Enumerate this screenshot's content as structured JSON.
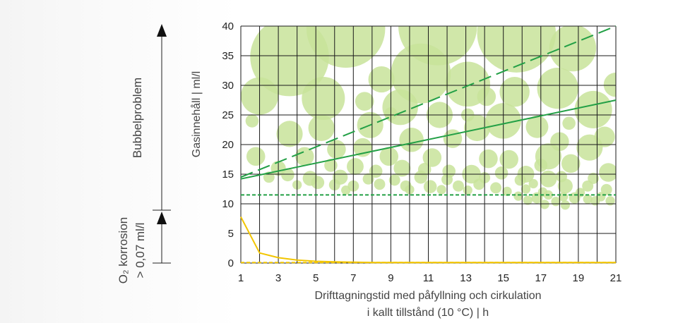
{
  "chart_data": {
    "type": "line",
    "xlabel_line1": "Drifttagningstid med påfyllning och cirkulation",
    "xlabel_line2": "i kallt tillstånd (10 °C) | h",
    "ylabel": "Gasinnehåll | ml/l",
    "xlim": [
      1,
      21
    ],
    "ylim": [
      0,
      40
    ],
    "x_ticks": [
      1,
      3,
      5,
      7,
      9,
      11,
      13,
      15,
      17,
      19,
      21
    ],
    "y_ticks": [
      0,
      5,
      10,
      15,
      20,
      25,
      30,
      35,
      40
    ],
    "grid": true,
    "bubble_problem_label": "Bubbelproblem",
    "o2_label_line1": "O₂ korrosion",
    "o2_label_line2": "> 0,07 ml/l",
    "series": [
      {
        "style": "dashed",
        "color": "#23a046",
        "x": [
          1,
          21
        ],
        "y": [
          14.5,
          40
        ]
      },
      {
        "style": "solid",
        "color": "#23a046",
        "x": [
          1,
          21
        ],
        "y": [
          14.2,
          27.5
        ]
      },
      {
        "style": "dotted",
        "color": "#23a046",
        "x": [
          1,
          21
        ],
        "y": [
          11.5,
          11.5
        ]
      },
      {
        "style": "solid",
        "color": "#f2c500",
        "x": [
          1,
          2,
          3,
          4,
          5,
          6,
          7,
          8,
          9,
          10,
          11,
          12,
          13,
          14,
          15,
          16,
          17,
          18,
          19,
          20,
          21
        ],
        "y": [
          7.8,
          1.7,
          0.9,
          0.5,
          0.3,
          0.2,
          0.15,
          0.1,
          0.1,
          0.1,
          0.1,
          0.1,
          0.1,
          0.1,
          0.1,
          0.1,
          0.1,
          0.1,
          0.1,
          0.1,
          0.1
        ]
      },
      {
        "style": "dotted",
        "color": "#f2c500",
        "x": [
          1,
          21
        ],
        "y": [
          0.1,
          0.1
        ]
      }
    ],
    "bubbles": [
      [
        3.6,
        34.8,
        4.2
      ],
      [
        6.6,
        39.6,
        4.2
      ],
      [
        11.5,
        40.0,
        4.2
      ],
      [
        15.7,
        38.8,
        4.2
      ],
      [
        18.7,
        36.3,
        2.5
      ],
      [
        10.6,
        32.0,
        3.2
      ],
      [
        13.1,
        30.2,
        2.4
      ],
      [
        8.5,
        31.0,
        1.4
      ],
      [
        21.0,
        30.1,
        1.3
      ],
      [
        2.0,
        28.2,
        2.0
      ],
      [
        5.4,
        27.8,
        2.3
      ],
      [
        9.5,
        26.3,
        1.9
      ],
      [
        17.9,
        29.5,
        2.2
      ],
      [
        15.6,
        28.9,
        1.6
      ],
      [
        19.8,
        25.9,
        2.0
      ],
      [
        14.1,
        28.1,
        1.0
      ],
      [
        7.6,
        27.3,
        1.0
      ],
      [
        11.6,
        25.0,
        1.4
      ],
      [
        15.0,
        24.0,
        1.9
      ],
      [
        5.3,
        22.8,
        1.4
      ],
      [
        7.9,
        23.3,
        1.4
      ],
      [
        13.6,
        22.8,
        1.4
      ],
      [
        16.8,
        23.0,
        1.2
      ],
      [
        3.6,
        21.8,
        1.4
      ],
      [
        10.1,
        20.8,
        1.3
      ],
      [
        12.3,
        21.0,
        1.0
      ],
      [
        6.1,
        19.2,
        1.0
      ],
      [
        7.5,
        19.5,
        1.0
      ],
      [
        19.6,
        19.5,
        1.4
      ],
      [
        20.4,
        21.3,
        1.1
      ],
      [
        18.0,
        20.5,
        1.0
      ],
      [
        1.8,
        18.0,
        1.0
      ],
      [
        4.4,
        18.0,
        1.0
      ],
      [
        8.9,
        18.0,
        1.0
      ],
      [
        11.2,
        17.8,
        1.0
      ],
      [
        14.2,
        17.6,
        1.0
      ],
      [
        15.3,
        17.5,
        1.0
      ],
      [
        17.4,
        18.0,
        1.4
      ],
      [
        1.6,
        24.0,
        0.7
      ],
      [
        9.0,
        25.2,
        0.7
      ],
      [
        13.1,
        25.0,
        0.7
      ],
      [
        18.5,
        23.6,
        0.7
      ],
      [
        3.0,
        16.0,
        0.8
      ],
      [
        5.8,
        16.5,
        0.7
      ],
      [
        7.1,
        16.3,
        0.9
      ],
      [
        8.2,
        15.5,
        0.7
      ],
      [
        9.6,
        16.0,
        0.9
      ],
      [
        10.8,
        15.8,
        0.7
      ],
      [
        12.1,
        15.5,
        0.7
      ],
      [
        13.3,
        15.0,
        1.0
      ],
      [
        14.9,
        15.2,
        0.7
      ],
      [
        16.2,
        15.0,
        0.9
      ],
      [
        17.0,
        16.5,
        0.7
      ],
      [
        18.6,
        16.8,
        1.0
      ],
      [
        20.6,
        15.3,
        1.0
      ],
      [
        2.5,
        14.5,
        0.6
      ],
      [
        3.5,
        14.9,
        0.7
      ],
      [
        4.7,
        14.3,
        0.8
      ],
      [
        6.3,
        14.5,
        0.8
      ],
      [
        7.8,
        14.2,
        0.6
      ],
      [
        9.2,
        14.0,
        0.6
      ],
      [
        10.6,
        14.5,
        0.7
      ],
      [
        12.0,
        14.1,
        0.6
      ],
      [
        14.0,
        14.4,
        0.6
      ],
      [
        15.9,
        14.0,
        0.6
      ],
      [
        17.4,
        14.2,
        0.9
      ],
      [
        18.1,
        14.6,
        0.6
      ],
      [
        19.8,
        14.3,
        0.6
      ],
      [
        4.0,
        13.2,
        0.5
      ],
      [
        5.1,
        13.6,
        0.7
      ],
      [
        6.0,
        13.2,
        0.6
      ],
      [
        7.0,
        13.0,
        0.6
      ],
      [
        8.4,
        13.3,
        0.6
      ],
      [
        9.8,
        13.0,
        0.6
      ],
      [
        11.1,
        12.9,
        0.7
      ],
      [
        12.6,
        13.0,
        0.6
      ],
      [
        13.7,
        13.3,
        0.6
      ],
      [
        14.6,
        12.7,
        0.6
      ],
      [
        16.2,
        12.5,
        0.5
      ],
      [
        16.6,
        13.4,
        0.5
      ],
      [
        18.3,
        13.0,
        0.8
      ],
      [
        19.5,
        13.0,
        0.6
      ],
      [
        20.5,
        12.4,
        0.6
      ],
      [
        6.6,
        12.3,
        0.5
      ],
      [
        10.0,
        12.4,
        0.5
      ],
      [
        11.7,
        12.4,
        0.5
      ],
      [
        13.1,
        12.3,
        0.5
      ],
      [
        15.2,
        12.1,
        0.5
      ],
      [
        17.1,
        12.0,
        0.5
      ],
      [
        19.1,
        11.9,
        0.5
      ],
      [
        15.8,
        11.3,
        0.5
      ],
      [
        16.8,
        11.0,
        0.6
      ],
      [
        17.4,
        11.5,
        0.5
      ],
      [
        18.2,
        11.2,
        0.5
      ],
      [
        18.8,
        11.0,
        0.6
      ],
      [
        19.5,
        10.8,
        0.5
      ],
      [
        20.2,
        11.2,
        0.5
      ],
      [
        16.3,
        10.6,
        0.5
      ],
      [
        17.8,
        10.4,
        0.5
      ],
      [
        19.9,
        10.5,
        0.5
      ],
      [
        20.7,
        10.5,
        0.5
      ],
      [
        17.2,
        9.9,
        0.5
      ],
      [
        18.3,
        9.8,
        0.5
      ]
    ]
  }
}
